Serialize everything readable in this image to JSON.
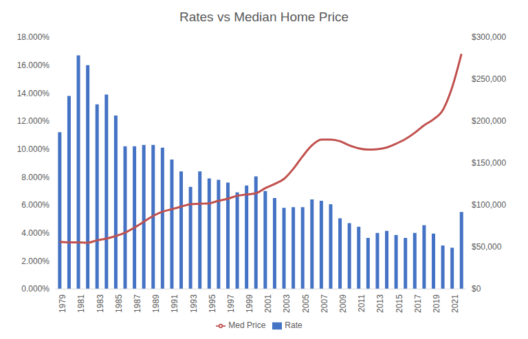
{
  "chart_data": {
    "type": "bar",
    "title": "Rates vs Median Home Price",
    "categories": [
      "1979",
      null,
      "1981",
      null,
      "1983",
      null,
      "1985",
      null,
      "1987",
      null,
      "1989",
      null,
      "1991",
      null,
      "1993",
      null,
      "1995",
      null,
      "1997",
      null,
      "1999",
      null,
      "2001",
      null,
      "2003",
      null,
      "2005",
      null,
      "2007",
      null,
      "2009",
      null,
      "2011",
      null,
      "2013",
      null,
      "2015",
      null,
      "2017",
      null,
      "2019",
      null,
      "2021",
      null
    ],
    "series": [
      {
        "name": "Rate",
        "type": "bar",
        "color": "#4472c4",
        "values": [
          11.2,
          13.8,
          16.7,
          16.0,
          13.2,
          13.9,
          12.4,
          10.2,
          10.2,
          10.3,
          10.3,
          10.1,
          9.25,
          8.4,
          7.3,
          8.4,
          7.9,
          7.8,
          7.6,
          6.9,
          7.4,
          8.05,
          7.0,
          6.5,
          5.8,
          5.85,
          5.85,
          6.4,
          6.3,
          6.05,
          5.05,
          4.7,
          4.45,
          3.65,
          4.0,
          4.15,
          3.85,
          3.65,
          4.0,
          4.55,
          3.95,
          3.1,
          2.95,
          5.5
        ]
      },
      {
        "name": "Med Price",
        "type": "line",
        "color": "#c0504d",
        "axis": "y2",
        "values": [
          56000,
          55500,
          55500,
          55000,
          58000,
          60000,
          63000,
          67000,
          73000,
          80000,
          87000,
          92000,
          95000,
          98000,
          101000,
          101500,
          102000,
          105000,
          107500,
          111000,
          112500,
          114000,
          120000,
          125000,
          131000,
          143000,
          158000,
          171000,
          178000,
          178000,
          176000,
          171000,
          167500,
          166000,
          166500,
          168500,
          173000,
          178500,
          186000,
          195000,
          202000,
          213000,
          240000,
          280000
        ]
      }
    ],
    "ylim": [
      0,
      18
    ],
    "yticks": [
      {
        "value": 0,
        "label": "0.000%"
      },
      {
        "value": 2,
        "label": "2.000%"
      },
      {
        "value": 4,
        "label": "4.000%"
      },
      {
        "value": 6,
        "label": "6.000%"
      },
      {
        "value": 8,
        "label": "8.000%"
      },
      {
        "value": 10,
        "label": "10.000%"
      },
      {
        "value": 12,
        "label": "12.000%"
      },
      {
        "value": 14,
        "label": "14.000%"
      },
      {
        "value": 16,
        "label": "16.000%"
      },
      {
        "value": 18,
        "label": "18.000%"
      }
    ],
    "y2lim": [
      0,
      300000
    ],
    "y2ticks": [
      {
        "value": 0,
        "label": "$0"
      },
      {
        "value": 50000,
        "label": "$50,000"
      },
      {
        "value": 100000,
        "label": "$100,000"
      },
      {
        "value": 150000,
        "label": "$150,000"
      },
      {
        "value": 200000,
        "label": "$200,000"
      },
      {
        "value": 250000,
        "label": "$250,000"
      },
      {
        "value": 300000,
        "label": "$300,000"
      }
    ],
    "grid": false,
    "legend": "bottom"
  }
}
